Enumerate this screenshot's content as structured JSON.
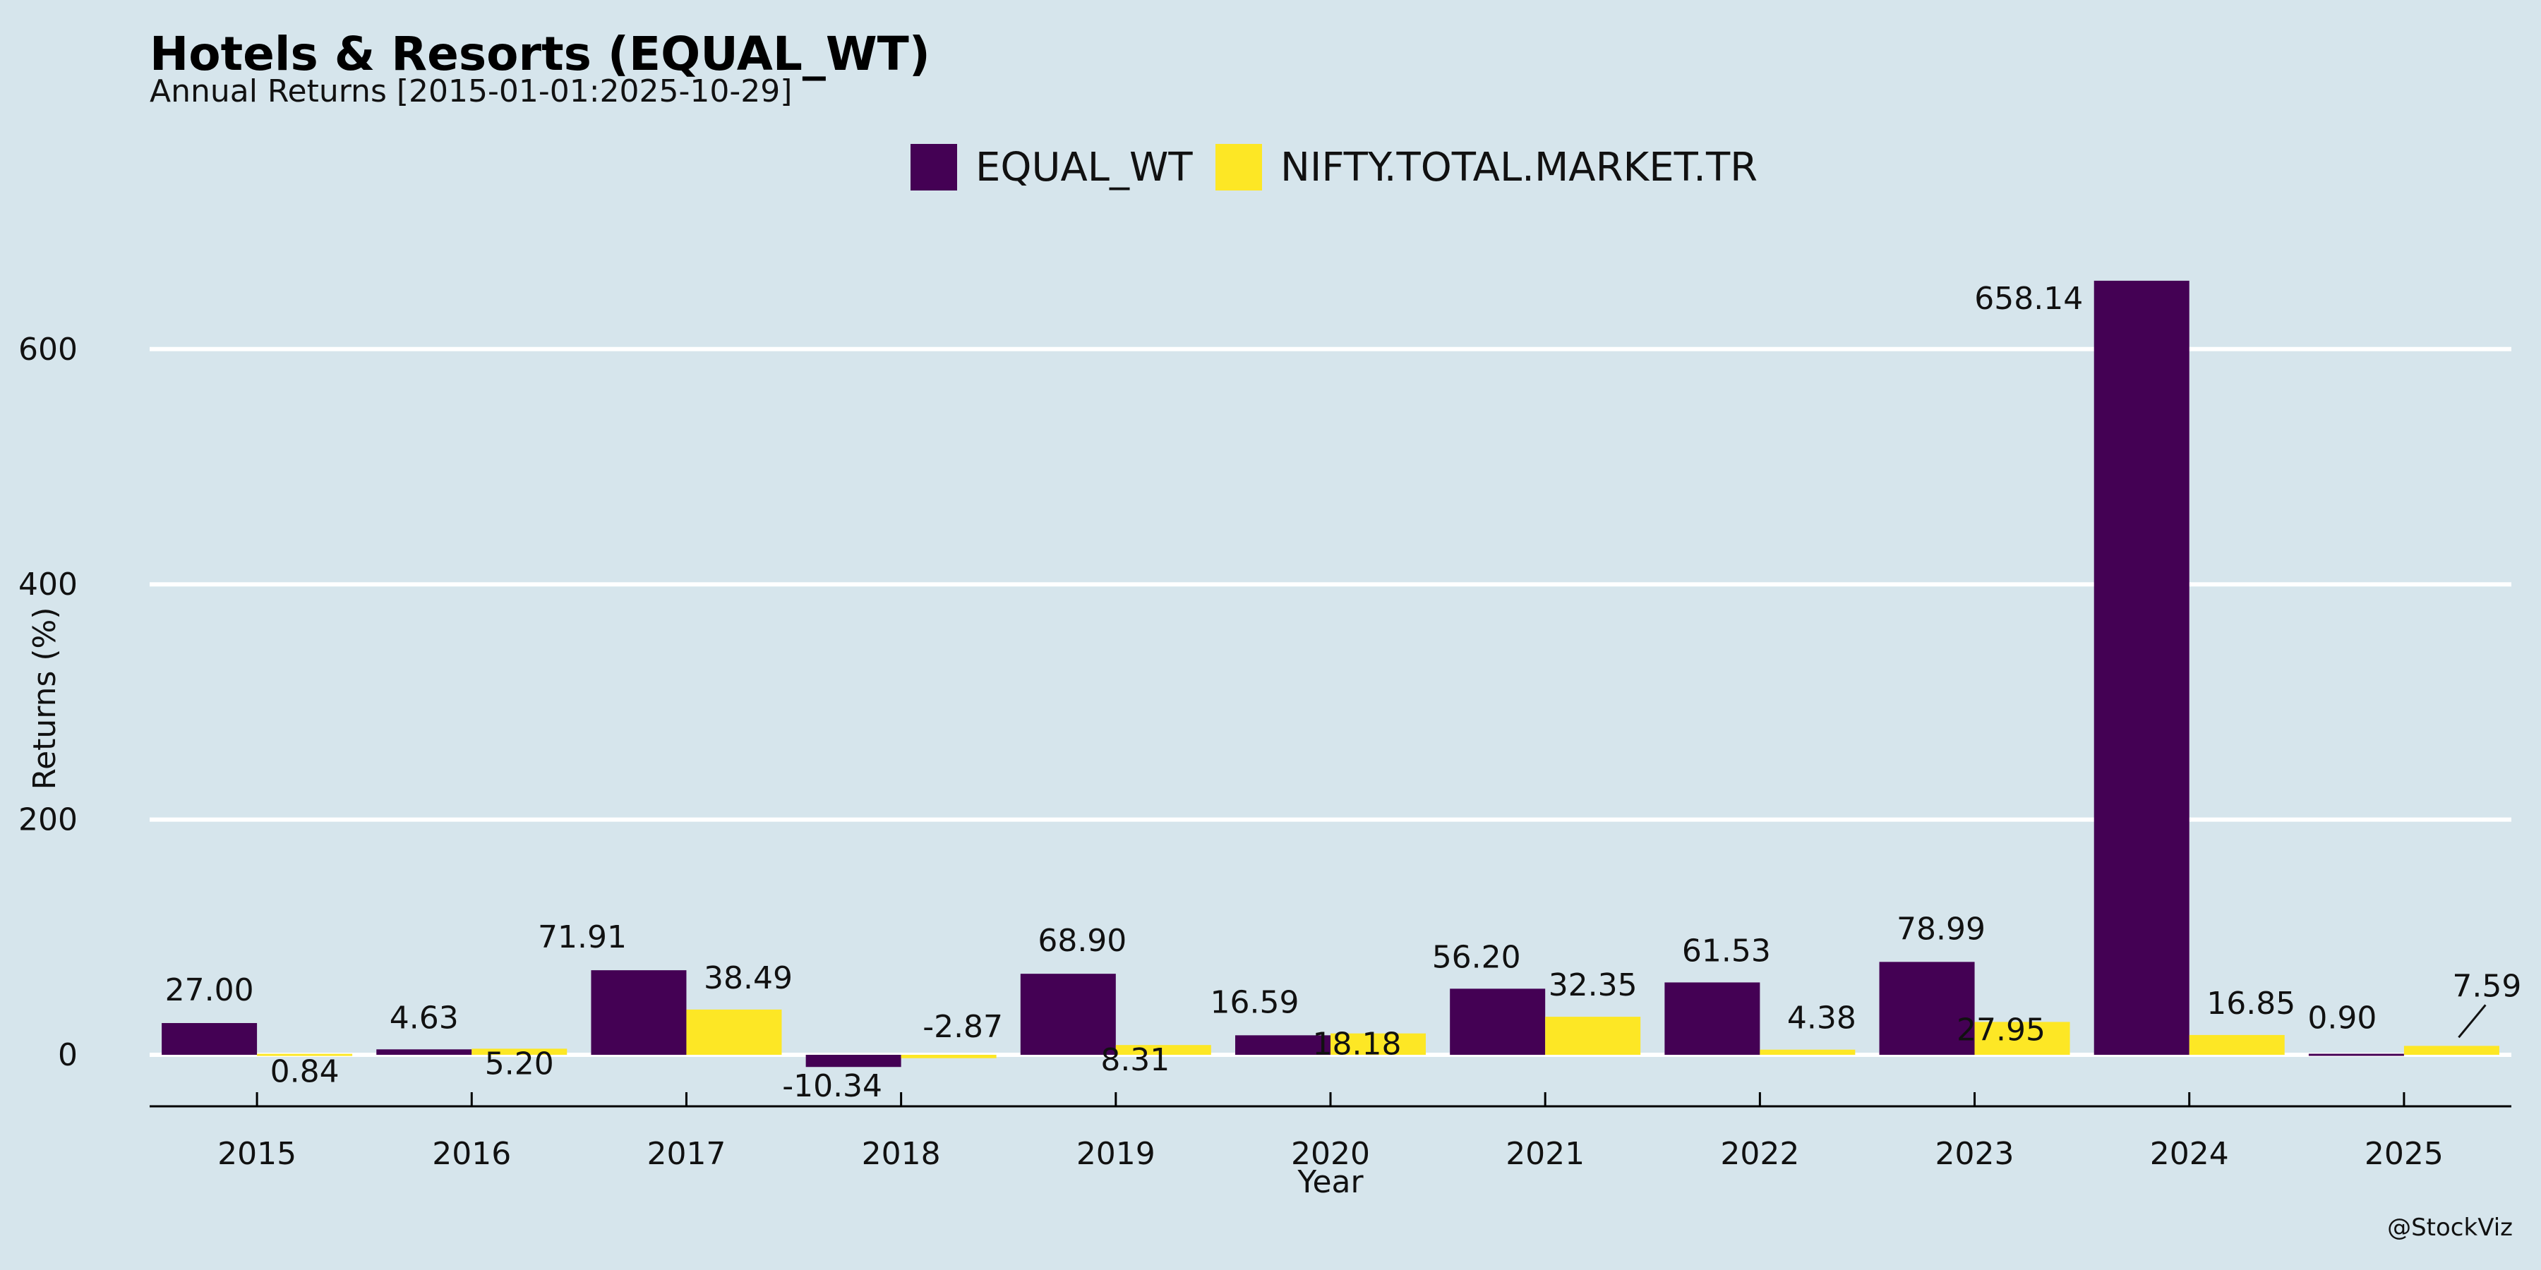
{
  "colors": {
    "background": "#d6e5ec",
    "equal_wt": "#440154",
    "nifty": "#fde725",
    "grid": "#ffffff",
    "axis": "#000000"
  },
  "caption": "@StockViz",
  "chart_data": {
    "type": "bar",
    "title": "Hotels & Resorts (EQUAL_WT)",
    "subtitle": "Annual Returns [2015-01-01:2025-10-29]",
    "xlabel": "Year",
    "ylabel": "Returns (%)",
    "ylim": [
      -44,
      720
    ],
    "yticks": [
      0,
      200,
      400,
      600
    ],
    "grid": true,
    "legend_position": "top-center",
    "categories": [
      "2015",
      "2016",
      "2017",
      "2018",
      "2019",
      "2020",
      "2021",
      "2022",
      "2023",
      "2024",
      "2025"
    ],
    "series": [
      {
        "name": "EQUAL_WT",
        "color": "#440154",
        "values": [
          27.0,
          4.63,
          71.91,
          -10.34,
          68.9,
          16.59,
          56.2,
          61.53,
          78.99,
          658.14,
          0.9
        ],
        "labels": [
          "27.00",
          "4.63",
          "71.91",
          "-10.34",
          "68.90",
          "16.59",
          "56.20",
          "61.53",
          "78.99",
          "658.14",
          "0.90"
        ]
      },
      {
        "name": "NIFTY.TOTAL.MARKET.TR",
        "color": "#fde725",
        "values": [
          0.84,
          5.2,
          38.49,
          -2.87,
          8.31,
          18.18,
          32.35,
          4.38,
          27.95,
          16.85,
          7.59
        ],
        "labels": [
          "0.84",
          "5.20",
          "38.49",
          "-2.87",
          "8.31",
          "18.18",
          "32.35",
          "4.38",
          "27.95",
          "16.85",
          "7.59"
        ]
      }
    ]
  }
}
